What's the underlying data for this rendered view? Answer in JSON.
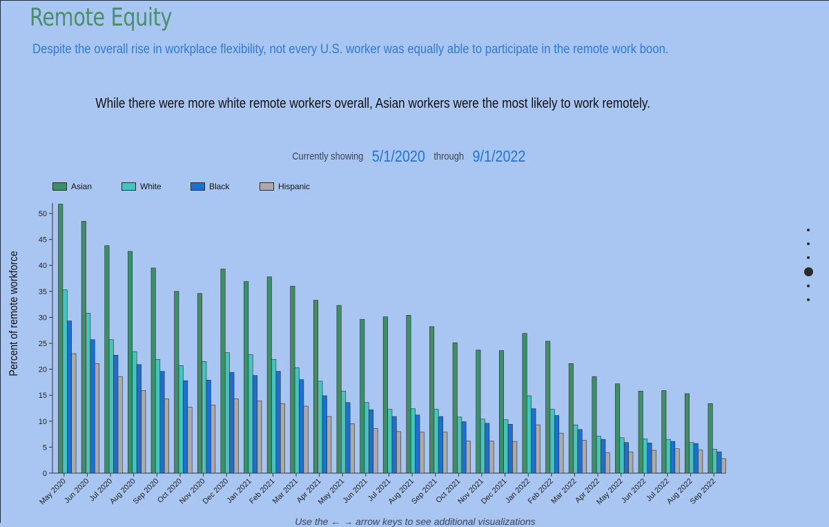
{
  "header": {
    "title": "Remote Equity",
    "subtitle": "Despite the overall rise in workplace flexibility, not every U.S. worker was equally able to participate in the remote work boon.",
    "headline": "While there were more white remote workers overall, Asian workers were the most likely to work remotely."
  },
  "range": {
    "prefix": "Currently showing",
    "start": "5/1/2020",
    "middle": "through",
    "end": "9/1/2022"
  },
  "footer_hint": "Use the ← → arrow keys to see additional visualizations",
  "nav": {
    "count": 6,
    "active_index": 3
  },
  "chart_data": {
    "type": "bar",
    "ylabel": "Percent of remote workforce",
    "xlabel": "",
    "ylim": [
      0,
      52
    ],
    "yticks": [
      0,
      5,
      10,
      15,
      20,
      25,
      30,
      35,
      40,
      45,
      50
    ],
    "legend_position": "top-left",
    "categories": [
      "May 2020",
      "Jun 2020",
      "Jul 2020",
      "Aug 2020",
      "Sep 2020",
      "Oct 2020",
      "Nov 2020",
      "Dec 2020",
      "Jan 2021",
      "Feb 2021",
      "Mar 2021",
      "Apr 2021",
      "May 2021",
      "Jun 2021",
      "Jul 2021",
      "Aug 2021",
      "Sep 2021",
      "Oct 2021",
      "Nov 2021",
      "Dec 2021",
      "Jan 2022",
      "Feb 2022",
      "Mar 2022",
      "Apr 2022",
      "May 2022",
      "Jun 2022",
      "Jul 2022",
      "Aug 2022",
      "Sep 2022"
    ],
    "series": [
      {
        "name": "Asian",
        "color": "#3e8e68",
        "values": [
          51.8,
          48.5,
          43.8,
          42.7,
          39.5,
          35.0,
          34.6,
          39.3,
          36.9,
          37.8,
          36.0,
          33.3,
          32.3,
          29.6,
          30.1,
          30.4,
          28.2,
          25.1,
          23.7,
          23.6,
          26.9,
          25.4,
          21.1,
          18.6,
          17.2,
          15.8,
          15.9,
          15.3,
          13.4
        ]
      },
      {
        "name": "White",
        "color": "#44c4be",
        "values": [
          35.3,
          30.8,
          25.7,
          23.4,
          21.9,
          20.7,
          21.5,
          23.2,
          22.8,
          21.9,
          20.3,
          17.7,
          15.8,
          13.6,
          12.3,
          12.4,
          12.3,
          10.8,
          10.4,
          10.3,
          14.9,
          12.3,
          9.3,
          7.1,
          6.8,
          6.6,
          6.5,
          5.9,
          4.6
        ]
      },
      {
        "name": "Black",
        "color": "#1d6fd2",
        "values": [
          29.3,
          25.7,
          22.7,
          20.9,
          19.6,
          17.8,
          17.9,
          19.4,
          18.8,
          19.6,
          18.0,
          14.9,
          13.6,
          12.2,
          10.9,
          11.2,
          10.9,
          9.9,
          9.6,
          9.4,
          12.4,
          11.1,
          8.4,
          6.5,
          5.9,
          5.8,
          6.1,
          5.7,
          4.1
        ]
      },
      {
        "name": "Hispanic",
        "color": "#aaaaaa",
        "values": [
          23.0,
          21.1,
          18.6,
          15.9,
          14.3,
          12.7,
          13.1,
          14.3,
          13.9,
          13.4,
          12.9,
          10.9,
          9.5,
          8.6,
          8.0,
          7.9,
          7.9,
          6.2,
          6.2,
          6.1,
          9.3,
          7.7,
          6.3,
          3.9,
          4.1,
          4.4,
          4.7,
          4.5,
          2.8
        ]
      }
    ]
  }
}
